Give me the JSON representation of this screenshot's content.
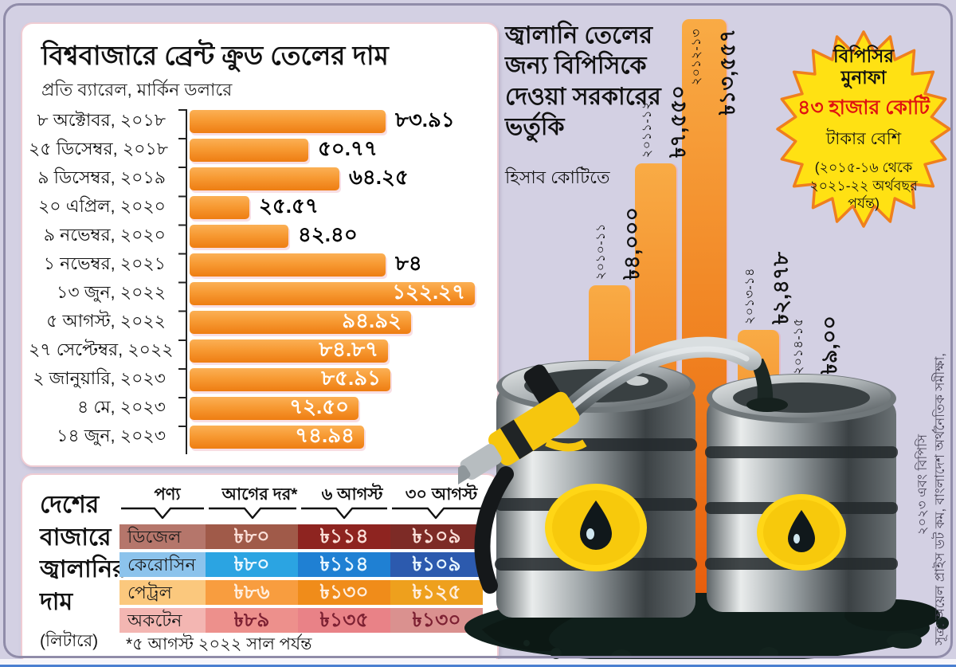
{
  "page": {
    "background": "#d3d0e3",
    "accent_orange": "#f08120",
    "frame_border": "#908ca9",
    "bottom_line_blue": "#4a7fd0"
  },
  "chart_data": [
    {
      "type": "bar",
      "orientation": "horizontal",
      "title": "বিশ্ববাজারে ব্রেন্ট ক্রুড তেলের দাম",
      "subtitle": "প্রতি ব্যারেল, মার্কিন ডলারে",
      "categories": [
        "৮ অক্টোবর, ২০১৮",
        "২৫ ডিসেম্বর, ২০১৮",
        "৯ ডিসেম্বর, ২০১৯",
        "২০ এপ্রিল, ২০২০",
        "৯ নভেম্বর, ২০২০",
        "১ নভেম্বর, ২০২১",
        "১৩ জুন, ২০২২",
        "৫ আগস্ট, ২০২২",
        "২৭ সেপ্টেম্বর, ২০২২",
        "২ জানুয়ারি, ২০২৩",
        "৪ মে, ২০২৩",
        "১৪ জুন, ২০২৩"
      ],
      "values": [
        83.91,
        50.77,
        64.25,
        25.57,
        42.4,
        84,
        122.27,
        94.92,
        84.87,
        85.91,
        72.5,
        74.94
      ],
      "value_labels": [
        "৮৩.৯১",
        "৫০.৭৭",
        "৬৪.২৫",
        "২৫.৫৭",
        "৪২.৪০",
        "৮৪",
        "১২২.২৭",
        "৯৪.৯২",
        "৮৪.৮৭",
        "৮৫.৯১",
        "৭২.৫০",
        "৭৪.৯৪"
      ],
      "xlim": [
        0,
        122.27
      ],
      "bar_color": "#f79a33"
    },
    {
      "type": "bar",
      "orientation": "vertical",
      "title": "জ্বালানি তেলের জন্য বিপিসিকে দেওয়া সরকারের ভর্তুকি",
      "subtitle": "হিসাব কোটিতে",
      "categories": [
        "২০১০-১১",
        "২০১১-১২",
        "২০১২-১৩",
        "২০১৩-১৪",
        "২০১৪-১৫"
      ],
      "values": [
        4000,
        7550,
        13557,
        2478,
        900
      ],
      "value_labels": [
        "৳৪,০০০",
        "৳৭,৫৫০",
        "৳১৩,৫৫৭",
        "৳২,৪৭৮",
        "৳৯,০০"
      ],
      "bar_color": "#f08120"
    },
    {
      "type": "table",
      "title": "দেশের বাজারে জ্বালানির দাম",
      "unit": "(লিটারে)",
      "headers": [
        "পণ্য",
        "আগের দর*",
        "৬ আগস্ট",
        "৩০ আগস্ট"
      ],
      "rows": [
        [
          "ডিজেল",
          "৳৮০",
          "৳১১৪",
          "৳১০৯"
        ],
        [
          "কেরোসিন",
          "৳৮০",
          "৳১১৪",
          "৳১০৯"
        ],
        [
          "পেট্রল",
          "৳৮৬",
          "৳১৩০",
          "৳১২৫"
        ],
        [
          "অকটেন",
          "৳৮৯",
          "৳১৩৫",
          "৳১৩০"
        ]
      ],
      "row_colors": [
        "#8e2420",
        "#1f80d3",
        "#f08c1a",
        "#e98287"
      ],
      "footnote": "*৫ আগস্ট ২০২২ সাল পর্যন্ত"
    }
  ],
  "badge": {
    "title": "বিপিসির মুনাফা",
    "amount": "৪৩ হাজার কোটি",
    "suffix": "টাকার বেশি",
    "period": "(২০১৫-১৬ থেকে ২০২১-২২ অর্থবছর পর্যন্ত)",
    "fill": "#ffe113",
    "border": "#ef7f1d",
    "amount_color": "#e01310"
  },
  "source": {
    "line1": "সূত্র: অয়েল প্রাইস ডট কম, বাংলাদেশ অর্থনৈতিক সমীক্ষা,",
    "line2": "২০২৩ এবং বিপিসি"
  }
}
